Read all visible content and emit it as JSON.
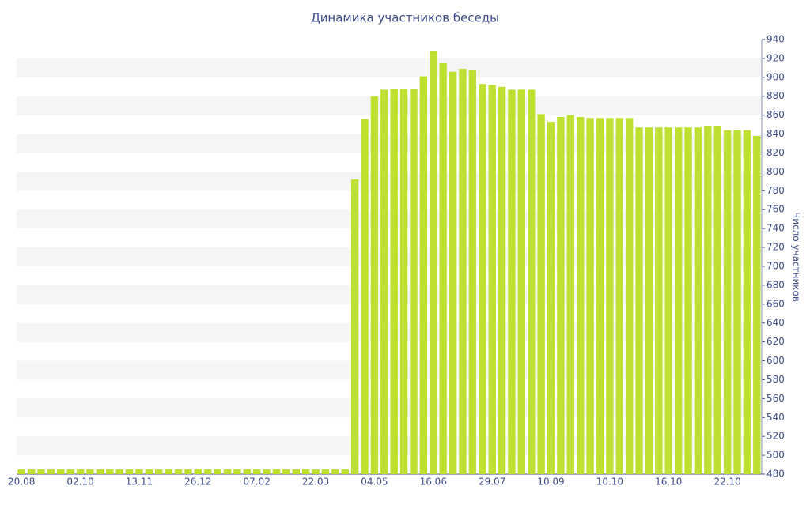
{
  "chart_data": {
    "type": "bar",
    "title": "Динамика участников беседы",
    "y_axis_label": "Число участников",
    "categories": [
      "20.08",
      null,
      null,
      null,
      null,
      null,
      "02.10",
      null,
      null,
      null,
      null,
      null,
      "13.11",
      null,
      null,
      null,
      null,
      null,
      "26.12",
      null,
      null,
      null,
      null,
      null,
      "07.02",
      null,
      null,
      null,
      null,
      null,
      "22.03",
      null,
      null,
      null,
      null,
      null,
      "04.05",
      null,
      null,
      null,
      null,
      null,
      "16.06",
      null,
      null,
      null,
      null,
      null,
      "29.07",
      null,
      null,
      null,
      null,
      null,
      "10.09",
      null,
      null,
      null,
      null,
      null,
      "10.10",
      null,
      null,
      null,
      null,
      null,
      "16.10",
      null,
      null,
      null,
      null,
      null,
      "22.10",
      null,
      null,
      null
    ],
    "values": [
      485,
      485,
      485,
      485,
      485,
      485,
      485,
      485,
      485,
      485,
      485,
      485,
      485,
      485,
      485,
      485,
      485,
      485,
      485,
      485,
      485,
      485,
      485,
      485,
      485,
      485,
      485,
      485,
      485,
      485,
      485,
      485,
      485,
      485,
      792,
      856,
      880,
      887,
      888,
      888,
      888,
      901,
      928,
      915,
      906,
      909,
      908,
      893,
      892,
      890,
      887,
      887,
      887,
      861,
      853,
      858,
      860,
      858,
      857,
      857,
      857,
      857,
      857,
      847,
      847,
      847,
      847,
      847,
      847,
      847,
      848,
      848,
      844,
      844,
      844,
      838
    ],
    "color": "#bde033",
    "ylim": [
      480,
      940
    ],
    "yticks": [
      480,
      500,
      520,
      540,
      560,
      580,
      600,
      620,
      640,
      660,
      680,
      700,
      720,
      740,
      760,
      780,
      800,
      820,
      840,
      860,
      880,
      900,
      920,
      940
    ],
    "grid": "bands",
    "y_axis_side": "right"
  }
}
